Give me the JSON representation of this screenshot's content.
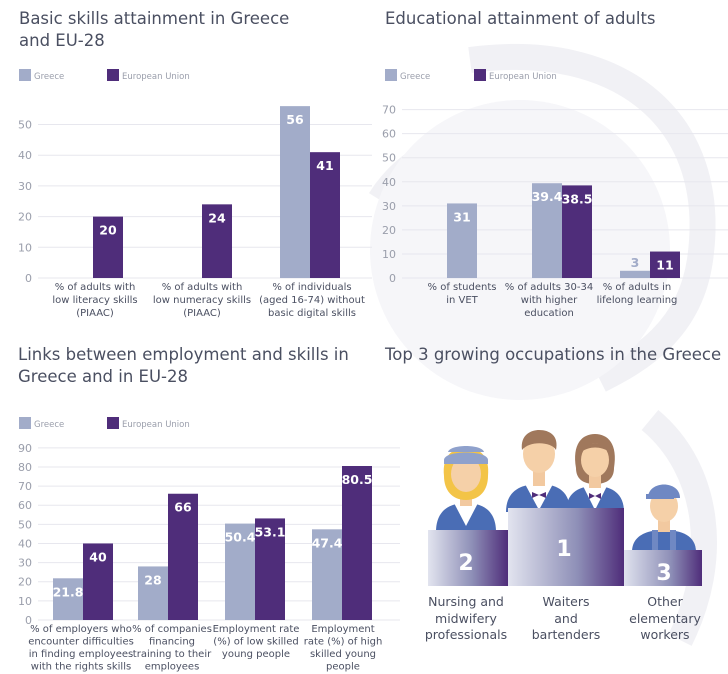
{
  "colors": {
    "greece": "#a2acc9",
    "eu": "#4f2d7a",
    "grid": "#e7e7ee",
    "axis_text": "#9a9eab",
    "label_text": "#4a4f61",
    "podium_light": "#c9cde0",
    "podium_dark": "#5a3d85"
  },
  "chart_data": [
    {
      "type": "bar",
      "title": "Basic skills attainment in Greece\nand EU-28",
      "legend": [
        "Greece",
        "European Union"
      ],
      "legend_position": "top-left",
      "ylim": [
        0,
        58
      ],
      "yticks": [
        0,
        10,
        20,
        30,
        40,
        50
      ],
      "grid": true,
      "categories": [
        "% of adults with\nlow literacy skills\n(PIAAC)",
        "% of adults with\nlow numeracy skills\n(PIAAC)",
        "% of individuals\n(aged 16-74) without\nbasic digital skills"
      ],
      "series": [
        {
          "name": "Greece",
          "values": [
            null,
            null,
            56
          ],
          "labels": [
            "",
            "",
            "56"
          ]
        },
        {
          "name": "European Union",
          "values": [
            20,
            24,
            41
          ],
          "labels": [
            "20",
            "24",
            "41"
          ]
        }
      ]
    },
    {
      "type": "bar",
      "title": "Educational attainment of adults",
      "legend": [
        "Greece",
        "European Union"
      ],
      "legend_position": "top-left",
      "ylim": [
        0,
        74
      ],
      "yticks": [
        0,
        10,
        20,
        30,
        40,
        50,
        60,
        70
      ],
      "grid": true,
      "categories": [
        "% of students\nin VET",
        "% of adults 30-34\nwith higher\neducation",
        "% of adults in\nlifelong learning"
      ],
      "series": [
        {
          "name": "Greece",
          "values": [
            31,
            39.4,
            3
          ],
          "labels": [
            "31",
            "39.4",
            "3"
          ]
        },
        {
          "name": "European Union",
          "values": [
            null,
            38.5,
            11
          ],
          "labels": [
            "",
            "38.5",
            "11"
          ]
        }
      ]
    },
    {
      "type": "bar",
      "title": "Links between employment and skills in\nGreece and in EU-28",
      "legend": [
        "Greece",
        "European Union"
      ],
      "legend_position": "top-left",
      "ylim": [
        0,
        92
      ],
      "yticks": [
        0,
        10,
        20,
        30,
        40,
        50,
        60,
        70,
        80,
        90
      ],
      "grid": true,
      "categories": [
        "% of employers who\nencounter difficulties\nin finding employees\nwith the rights skills",
        "% of companies\nfinancing\ntraining to their\nemployees",
        "Employment rate\n(%) of low skilled\nyoung people",
        "Employment\nrate (%) of high\nskilled young\npeople"
      ],
      "series": [
        {
          "name": "Greece",
          "values": [
            21.8,
            28,
            50.4,
            47.4
          ],
          "labels": [
            "21.8",
            "28",
            "50.4",
            "47.4"
          ]
        },
        {
          "name": "European Union",
          "values": [
            40,
            66,
            53.1,
            80.5
          ],
          "labels": [
            "40",
            "66",
            "53.1",
            "80.5"
          ]
        }
      ]
    }
  ],
  "podium": {
    "title": "Top 3 growing occupations in the Greece",
    "places": [
      {
        "rank": "2",
        "label": "Nursing and\nmidwifery\nprofessionals"
      },
      {
        "rank": "1",
        "label": "Waiters\nand\nbartenders"
      },
      {
        "rank": "3",
        "label": "Other\nelementary\nworkers"
      }
    ]
  }
}
